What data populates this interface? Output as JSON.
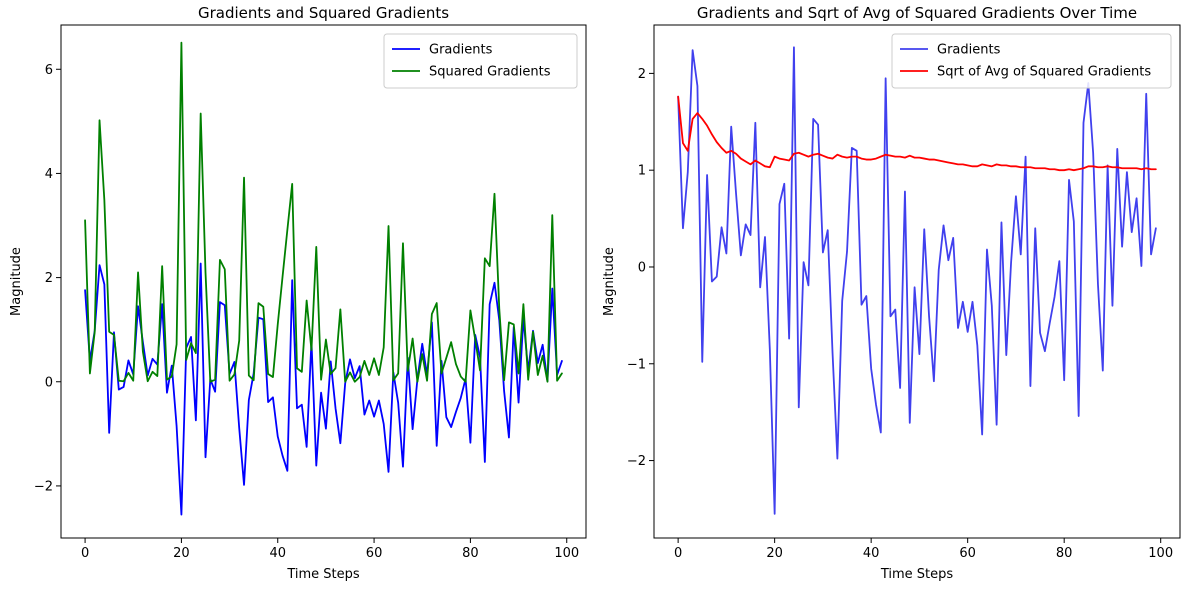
{
  "chart_data": [
    {
      "type": "line",
      "title": "Gradients and Squared Gradients",
      "xlabel": "Time Steps",
      "ylabel": "Magnitude",
      "xlim": [
        -5,
        104
      ],
      "ylim": [
        -3.0,
        6.85
      ],
      "xticks": [
        0,
        20,
        40,
        60,
        80,
        100
      ],
      "yticks": [
        -2,
        0,
        2,
        4,
        6
      ],
      "grid": false,
      "legend": "top-right",
      "series": [
        {
          "name": "Gradients",
          "color": "#0000ff",
          "x": [
            0,
            1,
            2,
            3,
            4,
            5,
            6,
            7,
            8,
            9,
            10,
            11,
            12,
            13,
            14,
            15,
            16,
            17,
            18,
            19,
            20,
            21,
            22,
            23,
            24,
            25,
            26,
            27,
            28,
            29,
            30,
            31,
            32,
            33,
            34,
            35,
            36,
            37,
            38,
            39,
            40,
            41,
            42,
            43,
            44,
            45,
            46,
            47,
            48,
            49,
            50,
            51,
            52,
            53,
            54,
            55,
            56,
            57,
            58,
            59,
            60,
            61,
            62,
            63,
            64,
            65,
            66,
            67,
            68,
            69,
            70,
            71,
            72,
            73,
            74,
            75,
            76,
            77,
            78,
            79,
            80,
            81,
            82,
            83,
            84,
            85,
            86,
            87,
            88,
            89,
            90,
            91,
            92,
            93,
            94,
            95,
            96,
            97,
            98,
            99
          ],
          "values": [
            1.76,
            0.4,
            0.98,
            2.24,
            1.87,
            -0.98,
            0.95,
            -0.15,
            -0.1,
            0.41,
            0.14,
            1.45,
            0.76,
            0.12,
            0.44,
            0.33,
            1.49,
            -0.21,
            0.31,
            -0.85,
            -2.55,
            0.65,
            0.86,
            -0.74,
            2.27,
            -1.45,
            0.05,
            -0.19,
            1.53,
            1.47,
            0.15,
            0.38,
            -0.89,
            -1.98,
            -0.35,
            0.16,
            1.23,
            1.2,
            -0.39,
            -0.3,
            -1.05,
            -1.42,
            -1.71,
            1.95,
            -0.51,
            -0.44,
            -1.25,
            0.78,
            -1.61,
            -0.21,
            -0.9,
            0.39,
            -0.51,
            -1.18,
            -0.03,
            0.43,
            0.07,
            0.3,
            -0.63,
            -0.36,
            -0.67,
            -0.36,
            -0.81,
            -1.73,
            0.18,
            -0.4,
            -1.63,
            0.46,
            -0.91,
            0.05,
            0.73,
            0.13,
            1.14,
            -1.23,
            0.4,
            -0.68,
            -0.87,
            -0.58,
            -0.31,
            0.06,
            -1.17,
            0.9,
            0.47,
            -1.54,
            1.49,
            1.9,
            1.18,
            -0.18,
            -1.07,
            1.05,
            -0.4,
            1.22,
            0.21,
            0.98,
            0.36,
            0.71,
            0.01,
            1.79,
            0.13,
            0.4
          ]
        },
        {
          "name": "Squared Gradients",
          "color": "#008000",
          "x": [
            0,
            1,
            2,
            3,
            4,
            5,
            6,
            7,
            8,
            9,
            10,
            11,
            12,
            13,
            14,
            15,
            16,
            17,
            18,
            19,
            20,
            21,
            22,
            23,
            24,
            25,
            26,
            27,
            28,
            29,
            30,
            31,
            32,
            33,
            34,
            35,
            36,
            37,
            38,
            39,
            40,
            41,
            42,
            43,
            44,
            45,
            46,
            47,
            48,
            49,
            50,
            51,
            52,
            53,
            54,
            55,
            56,
            57,
            58,
            59,
            60,
            61,
            62,
            63,
            64,
            65,
            66,
            67,
            68,
            69,
            70,
            71,
            72,
            73,
            74,
            75,
            76,
            77,
            78,
            79,
            80,
            81,
            82,
            83,
            84,
            85,
            86,
            87,
            88,
            89,
            90,
            91,
            92,
            93,
            94,
            95,
            96,
            97,
            98,
            99
          ],
          "values": [
            3.1,
            0.16,
            0.96,
            5.02,
            3.49,
            0.96,
            0.9,
            0.02,
            0.01,
            0.17,
            0.02,
            2.1,
            0.58,
            0.01,
            0.19,
            0.11,
            2.22,
            0.04,
            0.1,
            0.72,
            6.51,
            0.42,
            0.74,
            0.55,
            5.15,
            2.1,
            0.0,
            0.04,
            2.34,
            2.16,
            0.02,
            0.14,
            0.79,
            3.92,
            0.12,
            0.03,
            1.51,
            1.44,
            0.15,
            0.09,
            1.1,
            2.02,
            2.92,
            3.8,
            0.26,
            0.19,
            1.56,
            0.61,
            2.59,
            0.04,
            0.81,
            0.15,
            0.26,
            1.39,
            0.0,
            0.18,
            0.0,
            0.09,
            0.4,
            0.13,
            0.45,
            0.13,
            0.66,
            2.99,
            0.03,
            0.16,
            2.66,
            0.21,
            0.83,
            0.0,
            0.53,
            0.02,
            1.3,
            1.51,
            0.16,
            0.46,
            0.76,
            0.34,
            0.1,
            0.0,
            1.37,
            0.81,
            0.22,
            2.37,
            2.22,
            3.61,
            1.39,
            0.03,
            1.14,
            1.1,
            0.16,
            1.49,
            0.04,
            0.96,
            0.13,
            0.5,
            0.0,
            3.2,
            0.02,
            0.16
          ]
        }
      ]
    },
    {
      "type": "line",
      "title": "Gradients and Sqrt of Avg of Squared Gradients Over Time",
      "xlabel": "Time Steps",
      "ylabel": "Magnitude",
      "xlim": [
        -5,
        104
      ],
      "ylim": [
        -2.8,
        2.5
      ],
      "xticks": [
        0,
        20,
        40,
        60,
        80,
        100
      ],
      "yticks": [
        -2,
        -1,
        0,
        1,
        2
      ],
      "grid": false,
      "legend": "top-right",
      "series": [
        {
          "name": "Gradients",
          "color": "#4040ee",
          "x": [
            0,
            1,
            2,
            3,
            4,
            5,
            6,
            7,
            8,
            9,
            10,
            11,
            12,
            13,
            14,
            15,
            16,
            17,
            18,
            19,
            20,
            21,
            22,
            23,
            24,
            25,
            26,
            27,
            28,
            29,
            30,
            31,
            32,
            33,
            34,
            35,
            36,
            37,
            38,
            39,
            40,
            41,
            42,
            43,
            44,
            45,
            46,
            47,
            48,
            49,
            50,
            51,
            52,
            53,
            54,
            55,
            56,
            57,
            58,
            59,
            60,
            61,
            62,
            63,
            64,
            65,
            66,
            67,
            68,
            69,
            70,
            71,
            72,
            73,
            74,
            75,
            76,
            77,
            78,
            79,
            80,
            81,
            82,
            83,
            84,
            85,
            86,
            87,
            88,
            89,
            90,
            91,
            92,
            93,
            94,
            95,
            96,
            97,
            98,
            99
          ],
          "values": [
            1.76,
            0.4,
            0.98,
            2.24,
            1.87,
            -0.98,
            0.95,
            -0.15,
            -0.1,
            0.41,
            0.14,
            1.45,
            0.76,
            0.12,
            0.44,
            0.33,
            1.49,
            -0.21,
            0.31,
            -0.85,
            -2.55,
            0.65,
            0.86,
            -0.74,
            2.27,
            -1.45,
            0.05,
            -0.19,
            1.53,
            1.47,
            0.15,
            0.38,
            -0.89,
            -1.98,
            -0.35,
            0.16,
            1.23,
            1.2,
            -0.39,
            -0.3,
            -1.05,
            -1.42,
            -1.71,
            1.95,
            -0.51,
            -0.44,
            -1.25,
            0.78,
            -1.61,
            -0.21,
            -0.9,
            0.39,
            -0.51,
            -1.18,
            -0.03,
            0.43,
            0.07,
            0.3,
            -0.63,
            -0.36,
            -0.67,
            -0.36,
            -0.81,
            -1.73,
            0.18,
            -0.4,
            -1.63,
            0.46,
            -0.91,
            0.05,
            0.73,
            0.13,
            1.14,
            -1.23,
            0.4,
            -0.68,
            -0.87,
            -0.58,
            -0.31,
            0.06,
            -1.17,
            0.9,
            0.47,
            -1.54,
            1.49,
            1.9,
            1.18,
            -0.18,
            -1.07,
            1.05,
            -0.4,
            1.22,
            0.21,
            0.98,
            0.36,
            0.71,
            0.01,
            1.79,
            0.13,
            0.4
          ]
        },
        {
          "name": "Sqrt of Avg of Squared Gradients",
          "color": "#ff0000",
          "x": [
            0,
            1,
            2,
            3,
            4,
            5,
            6,
            7,
            8,
            9,
            10,
            11,
            12,
            13,
            14,
            15,
            16,
            17,
            18,
            19,
            20,
            21,
            22,
            23,
            24,
            25,
            26,
            27,
            28,
            29,
            30,
            31,
            32,
            33,
            34,
            35,
            36,
            37,
            38,
            39,
            40,
            41,
            42,
            43,
            44,
            45,
            46,
            47,
            48,
            49,
            50,
            51,
            52,
            53,
            54,
            55,
            56,
            57,
            58,
            59,
            60,
            61,
            62,
            63,
            64,
            65,
            66,
            67,
            68,
            69,
            70,
            71,
            72,
            73,
            74,
            75,
            76,
            77,
            78,
            79,
            80,
            81,
            82,
            83,
            84,
            85,
            86,
            87,
            88,
            89,
            90,
            91,
            92,
            93,
            94,
            95,
            96,
            97,
            98,
            99
          ],
          "values": [
            1.76,
            1.28,
            1.2,
            1.53,
            1.59,
            1.53,
            1.46,
            1.37,
            1.29,
            1.23,
            1.18,
            1.2,
            1.17,
            1.12,
            1.09,
            1.06,
            1.1,
            1.07,
            1.04,
            1.03,
            1.14,
            1.12,
            1.11,
            1.1,
            1.17,
            1.18,
            1.16,
            1.14,
            1.16,
            1.17,
            1.15,
            1.13,
            1.12,
            1.16,
            1.14,
            1.13,
            1.14,
            1.14,
            1.12,
            1.11,
            1.11,
            1.12,
            1.14,
            1.16,
            1.15,
            1.14,
            1.14,
            1.13,
            1.15,
            1.13,
            1.13,
            1.12,
            1.11,
            1.11,
            1.1,
            1.09,
            1.08,
            1.07,
            1.06,
            1.06,
            1.05,
            1.04,
            1.04,
            1.06,
            1.05,
            1.04,
            1.06,
            1.05,
            1.05,
            1.04,
            1.04,
            1.03,
            1.03,
            1.03,
            1.02,
            1.02,
            1.02,
            1.01,
            1.01,
            1.0,
            1.0,
            1.01,
            1.0,
            1.01,
            1.02,
            1.04,
            1.04,
            1.03,
            1.03,
            1.04,
            1.03,
            1.03,
            1.02,
            1.02,
            1.02,
            1.02,
            1.01,
            1.02,
            1.01,
            1.01
          ]
        }
      ]
    }
  ]
}
